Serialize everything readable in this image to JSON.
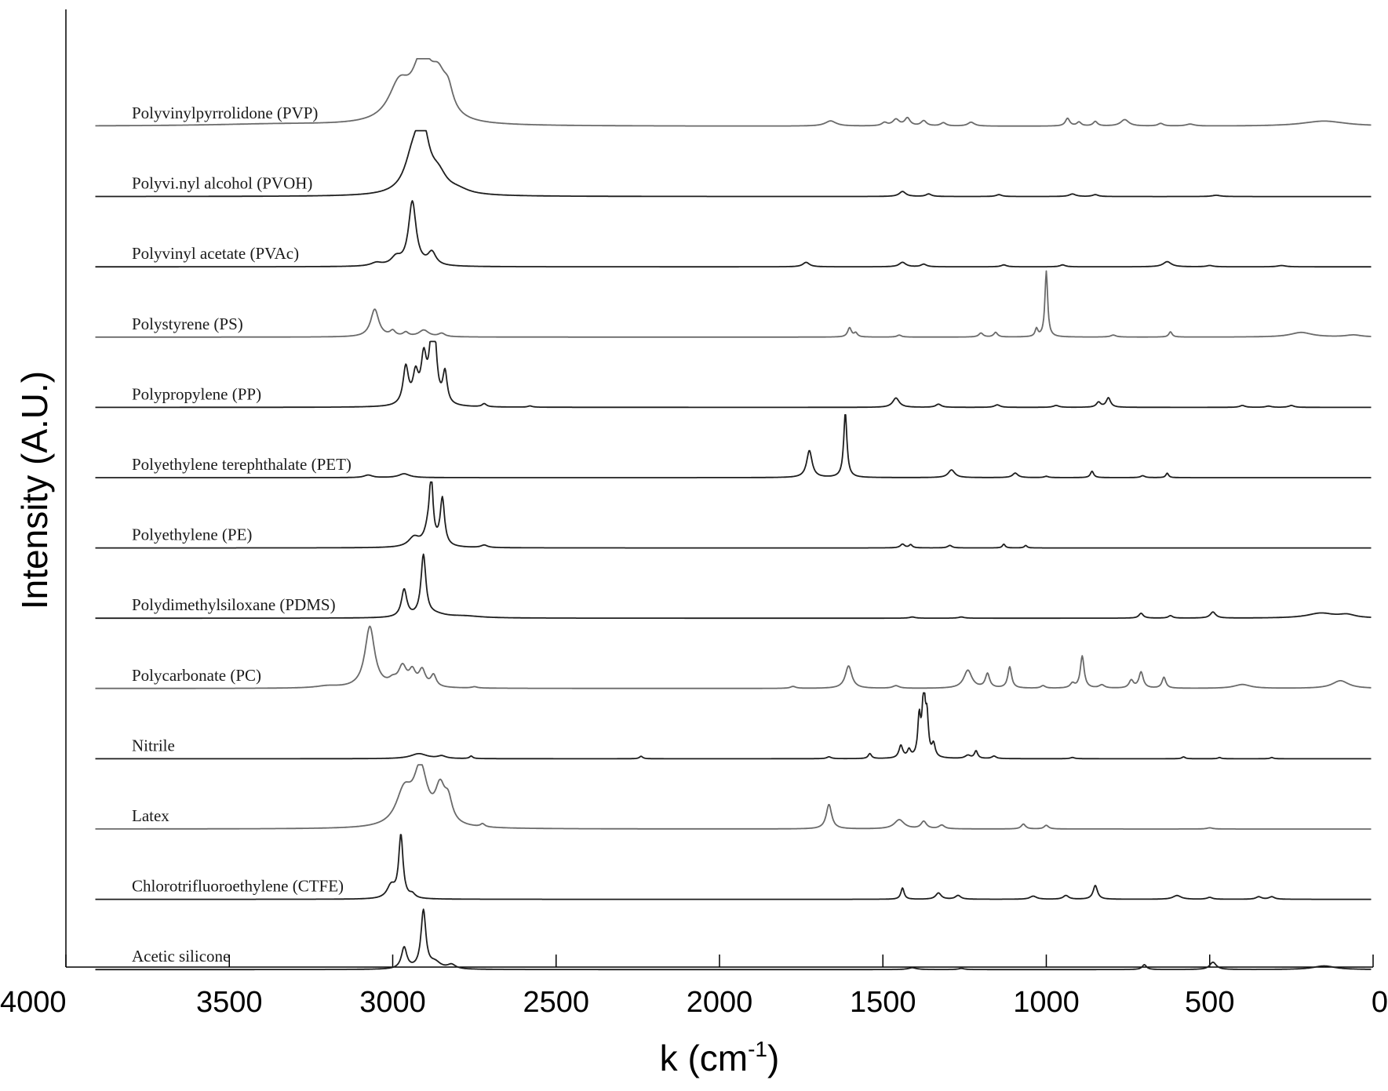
{
  "chart_data": {
    "type": "line",
    "xlabel_base": "k (cm",
    "xlabel_exp": "-1",
    "xlabel_close": ")",
    "ylabel": "Intensity (A.U.)",
    "xlim": [
      4000,
      0
    ],
    "x_reversed": true,
    "x_ticks": [
      4000,
      3500,
      3000,
      2500,
      2000,
      1500,
      1000,
      500,
      0
    ],
    "x_tick_labels": [
      "4000",
      "3500",
      "3000",
      "2500",
      "2000",
      "1500",
      "1000",
      "500",
      "0"
    ],
    "y_ticks_shown": false,
    "grid": false,
    "legend": "none (series labelled inline)",
    "colors": {
      "dark": "#1e1e1e",
      "gray": "#6a6a6a"
    },
    "series": [
      {
        "name": "Polyvinylpyrrolidone (PVP)",
        "color": "#6a6a6a",
        "range": [
          3910,
          5
        ],
        "peaks": [
          [
            2980,
            0.55,
            40
          ],
          [
            2910,
            0.9,
            35
          ],
          [
            2860,
            0.55,
            30
          ],
          [
            2830,
            0.3,
            18
          ],
          [
            3350,
            0.03,
            250
          ],
          [
            1660,
            0.08,
            20
          ],
          [
            1495,
            0.05,
            10
          ],
          [
            1460,
            0.1,
            12
          ],
          [
            1425,
            0.12,
            10
          ],
          [
            1375,
            0.08,
            10
          ],
          [
            1315,
            0.05,
            10
          ],
          [
            1230,
            0.06,
            12
          ],
          [
            935,
            0.12,
            8
          ],
          [
            900,
            0.06,
            8
          ],
          [
            850,
            0.07,
            8
          ],
          [
            760,
            0.1,
            15
          ],
          [
            650,
            0.04,
            10
          ],
          [
            560,
            0.03,
            15
          ],
          [
            150,
            0.08,
            80
          ]
        ]
      },
      {
        "name": "Polyvi.nyl alcohol (PVOH)",
        "color": "#1e1e1e",
        "range": [
          3910,
          5
        ],
        "peaks": [
          [
            2910,
            1.0,
            25
          ],
          [
            2940,
            0.45,
            30
          ],
          [
            2860,
            0.25,
            30
          ],
          [
            2800,
            0.06,
            40
          ],
          [
            1440,
            0.08,
            12
          ],
          [
            1360,
            0.04,
            10
          ],
          [
            1145,
            0.03,
            10
          ],
          [
            920,
            0.04,
            12
          ],
          [
            850,
            0.03,
            10
          ],
          [
            480,
            0.02,
            15
          ]
        ]
      },
      {
        "name": "Polyvinyl acetate (PVAc)",
        "color": "#1e1e1e",
        "range": [
          3910,
          5
        ],
        "peaks": [
          [
            2940,
            1.0,
            14
          ],
          [
            2880,
            0.2,
            15
          ],
          [
            2990,
            0.12,
            18
          ],
          [
            3050,
            0.05,
            20
          ],
          [
            1735,
            0.07,
            12
          ],
          [
            1440,
            0.07,
            12
          ],
          [
            1375,
            0.04,
            10
          ],
          [
            1130,
            0.03,
            10
          ],
          [
            950,
            0.03,
            10
          ],
          [
            630,
            0.08,
            15
          ],
          [
            500,
            0.02,
            12
          ],
          [
            280,
            0.02,
            15
          ]
        ]
      },
      {
        "name": "Polystyrene (PS)",
        "color": "#6a6a6a",
        "range": [
          3910,
          5
        ],
        "peaks": [
          [
            3055,
            0.42,
            15
          ],
          [
            3000,
            0.08,
            10
          ],
          [
            2960,
            0.06,
            10
          ],
          [
            2905,
            0.1,
            18
          ],
          [
            2850,
            0.05,
            12
          ],
          [
            1602,
            0.14,
            7
          ],
          [
            1583,
            0.06,
            6
          ],
          [
            1450,
            0.03,
            8
          ],
          [
            1200,
            0.06,
            8
          ],
          [
            1155,
            0.07,
            7
          ],
          [
            1030,
            0.12,
            5
          ],
          [
            1000,
            1.0,
            5
          ],
          [
            795,
            0.03,
            10
          ],
          [
            620,
            0.08,
            6
          ],
          [
            220,
            0.07,
            40
          ],
          [
            60,
            0.03,
            30
          ]
        ]
      },
      {
        "name": "Polypropylene (PP)",
        "color": "#1e1e1e",
        "range": [
          3910,
          5
        ],
        "peaks": [
          [
            2960,
            0.6,
            10
          ],
          [
            2930,
            0.45,
            10
          ],
          [
            2905,
            0.7,
            10
          ],
          [
            2880,
            1.0,
            10
          ],
          [
            2870,
            0.55,
            8
          ],
          [
            2840,
            0.5,
            8
          ],
          [
            2720,
            0.05,
            8
          ],
          [
            2580,
            0.02,
            8
          ],
          [
            1460,
            0.15,
            12
          ],
          [
            1330,
            0.05,
            10
          ],
          [
            1150,
            0.04,
            10
          ],
          [
            970,
            0.03,
            10
          ],
          [
            840,
            0.08,
            8
          ],
          [
            810,
            0.15,
            8
          ],
          [
            400,
            0.03,
            10
          ],
          [
            320,
            0.02,
            10
          ],
          [
            250,
            0.03,
            10
          ]
        ]
      },
      {
        "name": "Polyethylene terephthalate (PET)",
        "color": "#1e1e1e",
        "range": [
          3910,
          5
        ],
        "peaks": [
          [
            3075,
            0.04,
            15
          ],
          [
            2965,
            0.06,
            20
          ],
          [
            1725,
            0.42,
            10
          ],
          [
            1615,
            1.0,
            6
          ],
          [
            1290,
            0.12,
            12
          ],
          [
            1095,
            0.07,
            10
          ],
          [
            1000,
            0.02,
            8
          ],
          [
            860,
            0.1,
            6
          ],
          [
            705,
            0.03,
            8
          ],
          [
            630,
            0.07,
            5
          ]
        ]
      },
      {
        "name": "Polyethylene (PE)",
        "color": "#1e1e1e",
        "range": [
          3910,
          5
        ],
        "peaks": [
          [
            2935,
            0.15,
            20
          ],
          [
            2890,
            0.3,
            15
          ],
          [
            2882,
            0.95,
            6
          ],
          [
            2848,
            0.75,
            8
          ],
          [
            2720,
            0.04,
            12
          ],
          [
            1440,
            0.06,
            8
          ],
          [
            1415,
            0.05,
            6
          ],
          [
            1295,
            0.04,
            8
          ],
          [
            1130,
            0.06,
            5
          ],
          [
            1063,
            0.04,
            5
          ]
        ]
      },
      {
        "name": "Polydimethylsiloxane (PDMS)",
        "color": "#1e1e1e",
        "range": [
          3910,
          5
        ],
        "peaks": [
          [
            2965,
            0.45,
            10
          ],
          [
            2906,
            1.0,
            9
          ],
          [
            2870,
            0.05,
            40
          ],
          [
            2780,
            0.03,
            60
          ],
          [
            1410,
            0.02,
            10
          ],
          [
            1260,
            0.02,
            10
          ],
          [
            710,
            0.08,
            8
          ],
          [
            620,
            0.04,
            8
          ],
          [
            490,
            0.1,
            10
          ],
          [
            160,
            0.08,
            50
          ],
          [
            80,
            0.05,
            30
          ]
        ]
      },
      {
        "name": "Polycarbonate (PC)",
        "color": "#6a6a6a",
        "range": [
          3910,
          5
        ],
        "peaks": [
          [
            3070,
            0.95,
            18
          ],
          [
            3000,
            0.08,
            15
          ],
          [
            2970,
            0.3,
            15
          ],
          [
            2940,
            0.22,
            12
          ],
          [
            2910,
            0.25,
            12
          ],
          [
            2875,
            0.18,
            10
          ],
          [
            3200,
            0.03,
            40
          ],
          [
            2750,
            0.02,
            10
          ],
          [
            1775,
            0.03,
            10
          ],
          [
            1605,
            0.35,
            12
          ],
          [
            1460,
            0.04,
            12
          ],
          [
            1240,
            0.28,
            15
          ],
          [
            1180,
            0.22,
            8
          ],
          [
            1112,
            0.33,
            7
          ],
          [
            1010,
            0.04,
            8
          ],
          [
            920,
            0.07,
            8
          ],
          [
            890,
            0.5,
            7
          ],
          [
            830,
            0.05,
            10
          ],
          [
            740,
            0.12,
            8
          ],
          [
            710,
            0.25,
            8
          ],
          [
            640,
            0.17,
            7
          ],
          [
            400,
            0.06,
            30
          ],
          [
            100,
            0.12,
            30
          ]
        ]
      },
      {
        "name": "Nitrile",
        "color": "#1e1e1e",
        "range": [
          3910,
          5
        ],
        "peaks": [
          [
            2920,
            0.08,
            30
          ],
          [
            2850,
            0.04,
            15
          ],
          [
            2760,
            0.04,
            6
          ],
          [
            2240,
            0.04,
            6
          ],
          [
            1665,
            0.03,
            8
          ],
          [
            1540,
            0.08,
            6
          ],
          [
            1445,
            0.2,
            7
          ],
          [
            1420,
            0.12,
            6
          ],
          [
            1389,
            0.6,
            5
          ],
          [
            1375,
            1.0,
            6
          ],
          [
            1365,
            0.55,
            5
          ],
          [
            1345,
            0.2,
            6
          ],
          [
            1240,
            0.05,
            10
          ],
          [
            1215,
            0.12,
            6
          ],
          [
            1160,
            0.04,
            8
          ],
          [
            920,
            0.02,
            8
          ],
          [
            580,
            0.03,
            6
          ],
          [
            470,
            0.02,
            6
          ],
          [
            310,
            0.02,
            6
          ]
        ]
      },
      {
        "name": "Latex",
        "color": "#6a6a6a",
        "range": [
          3910,
          5
        ],
        "peaks": [
          [
            2965,
            0.55,
            30
          ],
          [
            2915,
            0.9,
            25
          ],
          [
            2855,
            0.55,
            18
          ],
          [
            2830,
            0.35,
            15
          ],
          [
            2725,
            0.05,
            8
          ],
          [
            1665,
            0.4,
            10
          ],
          [
            1450,
            0.15,
            18
          ],
          [
            1375,
            0.12,
            10
          ],
          [
            1320,
            0.06,
            10
          ],
          [
            1070,
            0.08,
            8
          ],
          [
            1000,
            0.06,
            8
          ],
          [
            500,
            0.02,
            10
          ]
        ]
      },
      {
        "name": "Chlorotrifluoroethylene (CTFE)",
        "color": "#1e1e1e",
        "range": [
          3910,
          5
        ],
        "peaks": [
          [
            2975,
            1.0,
            8
          ],
          [
            3005,
            0.2,
            15
          ],
          [
            2940,
            0.06,
            10
          ],
          [
            1440,
            0.18,
            6
          ],
          [
            1330,
            0.1,
            10
          ],
          [
            1270,
            0.06,
            10
          ],
          [
            1040,
            0.05,
            12
          ],
          [
            940,
            0.06,
            10
          ],
          [
            850,
            0.22,
            8
          ],
          [
            600,
            0.06,
            15
          ],
          [
            500,
            0.03,
            10
          ],
          [
            350,
            0.04,
            10
          ],
          [
            310,
            0.04,
            10
          ]
        ]
      },
      {
        "name": "Acetic silicone",
        "color": "#1e1e1e",
        "range": [
          3910,
          5
        ],
        "peaks": [
          [
            2965,
            0.35,
            10
          ],
          [
            2906,
            0.95,
            9
          ],
          [
            2870,
            0.1,
            20
          ],
          [
            2820,
            0.07,
            15
          ],
          [
            1410,
            0.03,
            15
          ],
          [
            1260,
            0.02,
            10
          ],
          [
            700,
            0.08,
            8
          ],
          [
            490,
            0.12,
            12
          ],
          [
            150,
            0.06,
            40
          ]
        ]
      }
    ]
  }
}
